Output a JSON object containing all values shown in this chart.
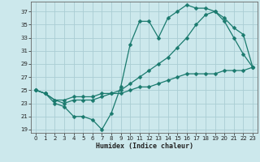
{
  "xlabel": "Humidex (Indice chaleur)",
  "bg_color": "#cce8ec",
  "grid_color": "#aacdd4",
  "line_color": "#1a7a6e",
  "line1_y": [
    25,
    24.5,
    23,
    22.5,
    21,
    21,
    20.5,
    19,
    21.5,
    25.5,
    32,
    35.5,
    35.5,
    33,
    36,
    37,
    38,
    37.5,
    37.5,
    37,
    35.5,
    33,
    30.5,
    28.5
  ],
  "line2_y": [
    25,
    24.5,
    23.5,
    23,
    23.5,
    23.5,
    23.5,
    24,
    24.5,
    25,
    26,
    27,
    28,
    29,
    30,
    31.5,
    33,
    35,
    36.5,
    37,
    36,
    34.5,
    33.5,
    28.5
  ],
  "line3_y": [
    25,
    24.5,
    23.5,
    23.5,
    24,
    24,
    24,
    24.5,
    24.5,
    24.5,
    25,
    25.5,
    25.5,
    26,
    26.5,
    27,
    27.5,
    27.5,
    27.5,
    27.5,
    28,
    28,
    28,
    28.5
  ],
  "xlim": [
    -0.5,
    23.5
  ],
  "ylim": [
    18.5,
    38.5
  ],
  "yticks": [
    19,
    21,
    23,
    25,
    27,
    29,
    31,
    33,
    35,
    37
  ],
  "xticks": [
    0,
    1,
    2,
    3,
    4,
    5,
    6,
    7,
    8,
    9,
    10,
    11,
    12,
    13,
    14,
    15,
    16,
    17,
    18,
    19,
    20,
    21,
    22,
    23
  ],
  "markersize": 2.5,
  "linewidth": 0.9
}
